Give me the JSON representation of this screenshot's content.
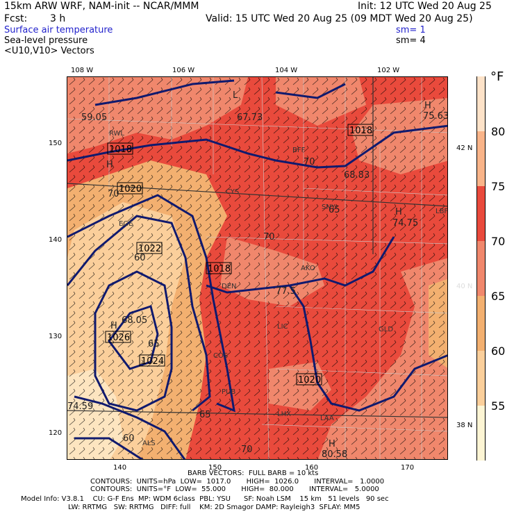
{
  "header": {
    "model": "15km ARW WRF, NAM-init -- NCAR/MMM",
    "init": "Init: 12 UTC Wed 20 Aug 25",
    "fcst_label": "Fcst:",
    "fcst_value": "3 h",
    "valid": "Valid: 15 UTC Wed 20 Aug 25 (09 MDT Wed 20 Aug 25)",
    "field1": "Surface air temperature",
    "field1_sm": "sm= 1",
    "field2": "Sea-level pressure",
    "field2_sm": "sm= 4",
    "field3": "<U10,V10> Vectors"
  },
  "axes": {
    "top_lon": [
      "108 W",
      "106 W",
      "104 W",
      "102 W"
    ],
    "bottom_x": [
      "140",
      "150",
      "160",
      "170"
    ],
    "left_y": [
      "150",
      "140",
      "130",
      "120"
    ],
    "right_lat": [
      "42 N",
      "40 N",
      "38 N"
    ]
  },
  "colorbar": {
    "unit": "°F",
    "labels": [
      "80",
      "75",
      "70",
      "65",
      "60",
      "55"
    ],
    "colors": [
      "#fde2c8",
      "#f9b489",
      "#f0876c",
      "#e94a3c",
      "#f3967a",
      "#f3b070",
      "#fbcf9b",
      "#fdf5d4"
    ]
  },
  "map": {
    "colors": {
      "red": "#e94a3c",
      "salmon": "#f0876c",
      "orange": "#f3b070",
      "peach": "#fbcf9b",
      "cream": "#fde5c0",
      "isobar": "#101a6e",
      "state": "#333333",
      "county": "#cccccc"
    },
    "isobar_labels": [
      "1018",
      "1018",
      "1020",
      "1022",
      "1018",
      "1026",
      "1024",
      "1020"
    ],
    "temp_labels": [
      "59.05",
      "67.73",
      "75.63",
      "68.83",
      "74.75",
      "77.5",
      "68.05",
      "74.59",
      "80.58",
      "70",
      "70",
      "70",
      "70",
      "60",
      "60",
      "65",
      "65",
      "65"
    ],
    "stations": [
      "RWL",
      "BFF",
      "CYS",
      "SNY",
      "LBF",
      "AKO",
      "DEN",
      "COS",
      "GLD",
      "PUB",
      "LHX",
      "ALS",
      "LAA",
      "EGE",
      "LIC"
    ],
    "extremes": [
      "H",
      "H",
      "H",
      "H",
      "H",
      "L"
    ]
  },
  "footer": {
    "barbs": "BARB VECTORS:  FULL BARB = 10 kts",
    "contours1": "CONTOURS:  UNITS=hPa  LOW=  1017.0       HIGH=  1026.0       INTERVAL=   1.0000",
    "contours2": "CONTOURS:  UNITS=°F  LOW=  55.000       HIGH=  80.000       INTERVAL=   5.0000",
    "info1": "Model Info: V3.8.1    CU: G-F Ens  MP: WDM 6class  PBL: YSU      SF: Noah LSM    15 km   51 levels   90 sec",
    "info2": "LW: RRTMG   SW: RRTMG   DIFF: full    KM: 2D Smagor DAMP: Rayleigh3  SFLAY: MM5"
  }
}
